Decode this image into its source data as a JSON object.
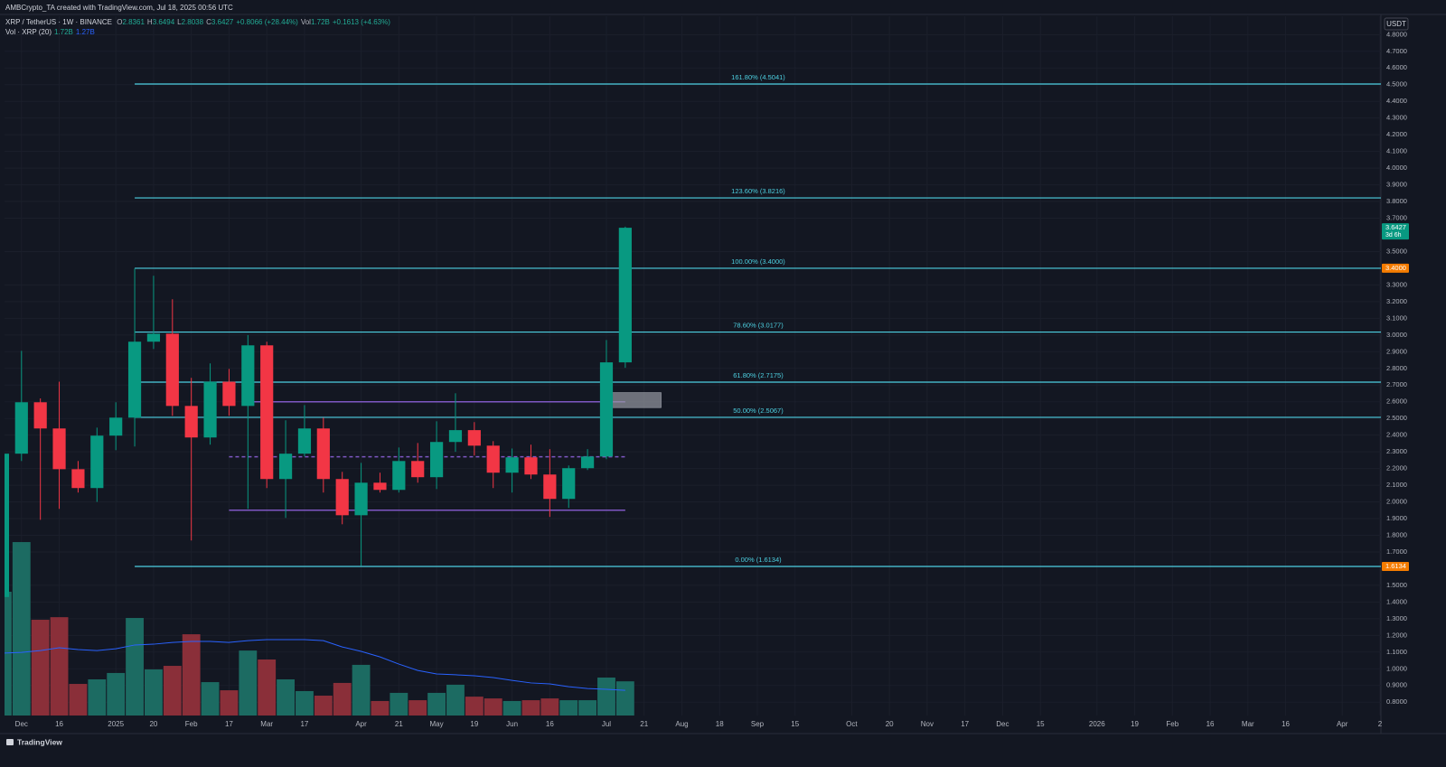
{
  "chart_data": {
    "type": "candlestick",
    "credit": "AMBCrypto_TA created with TradingView.com, Jul 18, 2025 00:56 UTC",
    "legend": {
      "symbol": "XRP / TetherUS · 1W · BINANCE",
      "ohlc": [
        {
          "key": "O",
          "value": "2.8361"
        },
        {
          "key": "H",
          "value": "3.6494"
        },
        {
          "key": "L",
          "value": "2.8038"
        },
        {
          "key": "C",
          "value": "3.6427"
        }
      ],
      "change": "+0.8066 (+28.44%)",
      "vol_key": "Vol",
      "vol_value": "1.72B",
      "vol_change": "+0.1613 (+4.63%)",
      "ma_name": "Vol · XRP (20)",
      "ma_vol": "1.72B",
      "ma_value": "1.27B"
    },
    "currency": "USDT",
    "brand": "TradingView",
    "up_color": "#089981",
    "down_color": "#f23645",
    "x": [
      -1,
      0,
      1,
      2,
      3,
      4,
      5,
      6,
      7,
      8,
      9,
      10,
      11,
      12,
      13,
      14,
      15,
      16,
      17,
      18,
      19,
      20,
      21,
      22,
      23,
      24,
      25,
      26,
      27,
      28,
      29,
      30,
      31,
      32
    ],
    "open": [
      1.43,
      2.289,
      2.597,
      2.44,
      2.196,
      2.083,
      2.397,
      2.505,
      2.96,
      3.008,
      2.575,
      2.386,
      2.72,
      2.575,
      2.938,
      2.137,
      2.289,
      2.44,
      2.137,
      1.92,
      2.115,
      2.072,
      2.245,
      2.148,
      2.359,
      2.43,
      2.337,
      2.175,
      2.267,
      2.164,
      2.018,
      2.202,
      2.272,
      2.8361
    ],
    "high": [
      2.35,
      2.905,
      2.62,
      2.72,
      2.245,
      2.445,
      2.597,
      3.398,
      3.355,
      3.214,
      2.743,
      2.83,
      2.797,
      3.0,
      2.96,
      2.489,
      2.58,
      2.505,
      2.18,
      2.234,
      2.175,
      2.326,
      2.353,
      2.483,
      2.651,
      2.478,
      2.364,
      2.32,
      2.343,
      2.316,
      2.218,
      2.316,
      2.97,
      3.6494
    ],
    "low": [
      1.4,
      2.245,
      1.893,
      1.958,
      2.056,
      2.0,
      2.31,
      2.332,
      2.916,
      2.516,
      1.769,
      2.343,
      2.516,
      1.958,
      2.083,
      1.904,
      2.272,
      2.056,
      1.866,
      1.617,
      2.056,
      2.056,
      2.115,
      2.077,
      2.3,
      2.278,
      2.083,
      2.056,
      2.137,
      1.91,
      1.964,
      2.191,
      2.256,
      2.8038
    ],
    "close": [
      2.289,
      2.597,
      2.44,
      2.196,
      2.083,
      2.397,
      2.505,
      2.96,
      3.008,
      2.575,
      2.386,
      2.72,
      2.575,
      2.938,
      2.137,
      2.289,
      2.44,
      2.137,
      1.92,
      2.115,
      2.072,
      2.245,
      2.148,
      2.359,
      2.43,
      2.337,
      2.175,
      2.267,
      2.164,
      2.018,
      2.202,
      2.272,
      2.8361,
      3.6427
    ],
    "volume": {
      "ylim": [
        0,
        35.2
      ],
      "up_color": "#1c6b62",
      "down_color": "#8a2f39",
      "values": [
        6.23,
        8.73,
        4.82,
        4.95,
        1.59,
        1.82,
        2.14,
        4.91,
        2.32,
        2.5,
        4.09,
        1.68,
        1.27,
        3.27,
        2.82,
        1.82,
        1.23,
        1.0,
        1.64,
        2.55,
        0.73,
        1.14,
        0.77,
        1.14,
        1.55,
        0.95,
        0.86,
        0.73,
        0.77,
        0.86,
        0.77,
        0.77,
        1.91,
        1.72
      ],
      "ma": {
        "color": "#2962ff",
        "values": [
          3.14,
          3.18,
          3.27,
          3.41,
          3.32,
          3.27,
          3.36,
          3.55,
          3.59,
          3.68,
          3.73,
          3.73,
          3.68,
          3.77,
          3.82,
          3.82,
          3.82,
          3.77,
          3.45,
          3.23,
          2.95,
          2.59,
          2.27,
          2.09,
          2.05,
          2.0,
          1.91,
          1.77,
          1.64,
          1.59,
          1.45,
          1.36,
          1.32,
          1.27
        ]
      }
    },
    "fib": {
      "color": "#4dd0e1",
      "start": 6,
      "levels": [
        {
          "value": 4.5041,
          "label": "161.80% (4.5041)"
        },
        {
          "value": 3.8216,
          "label": "123.60% (3.8216)"
        },
        {
          "value": 3.4,
          "label": "100.00% (3.4000)"
        },
        {
          "value": 3.0177,
          "label": "78.60% (3.0177)"
        },
        {
          "value": 2.7175,
          "label": "61.80% (2.7175)"
        },
        {
          "value": 2.5067,
          "label": "50.00% (2.5067)"
        },
        {
          "value": 1.6134,
          "label": "0.00% (1.6134)"
        }
      ]
    },
    "hlines": [
      {
        "value": 2.6,
        "x0": 12,
        "x1": 32,
        "dashed": false,
        "color": "#7e57c2"
      },
      {
        "value": 2.27,
        "x0": 11,
        "x1": 32,
        "dashed": true,
        "color": "#7e57c2"
      },
      {
        "value": 1.95,
        "x0": 11,
        "x1": 32,
        "dashed": false,
        "color": "#7e57c2"
      }
    ],
    "zone": {
      "top": 2.655,
      "bottom": 2.565,
      "x0": 31.3,
      "x1": 33.9,
      "color": "#9598a1"
    },
    "price_labels": [
      {
        "value": 3.6427,
        "label": "3.6427",
        "sublabel": "3d 6h",
        "color": "#089981"
      },
      {
        "value": 3.4,
        "label": "3.4000",
        "color": "#f57c00"
      },
      {
        "value": 1.6134,
        "label": "1.6134",
        "color": "#f57c00"
      }
    ],
    "xlim": [
      -0.9,
      72.05
    ],
    "xticks": [
      {
        "value": 0,
        "label": "Dec"
      },
      {
        "value": 2,
        "label": "16"
      },
      {
        "value": 5,
        "label": "2025"
      },
      {
        "value": 7,
        "label": "20"
      },
      {
        "value": 9,
        "label": "Feb"
      },
      {
        "value": 11,
        "label": "17"
      },
      {
        "value": 13,
        "label": "Mar"
      },
      {
        "value": 15,
        "label": "17"
      },
      {
        "value": 18,
        "label": "Apr"
      },
      {
        "value": 20,
        "label": "21"
      },
      {
        "value": 22,
        "label": "May"
      },
      {
        "value": 24,
        "label": "19"
      },
      {
        "value": 26,
        "label": "Jun"
      },
      {
        "value": 28,
        "label": "16"
      },
      {
        "value": 31,
        "label": "Jul"
      },
      {
        "value": 33,
        "label": "21"
      },
      {
        "value": 35,
        "label": "Aug"
      },
      {
        "value": 37,
        "label": "18"
      },
      {
        "value": 39,
        "label": "Sep"
      },
      {
        "value": 41,
        "label": "15"
      },
      {
        "value": 44,
        "label": "Oct"
      },
      {
        "value": 46,
        "label": "20"
      },
      {
        "value": 48,
        "label": "Nov"
      },
      {
        "value": 50,
        "label": "17"
      },
      {
        "value": 52,
        "label": "Dec"
      },
      {
        "value": 54,
        "label": "15"
      },
      {
        "value": 57,
        "label": "2026"
      },
      {
        "value": 59,
        "label": "19"
      },
      {
        "value": 61,
        "label": "Feb"
      },
      {
        "value": 63,
        "label": "16"
      },
      {
        "value": 65,
        "label": "Mar"
      },
      {
        "value": 67,
        "label": "16"
      },
      {
        "value": 70,
        "label": "Apr"
      },
      {
        "value": 72,
        "label": "2"
      }
    ],
    "ylim": [
      0.72,
      4.91
    ],
    "yticks": [
      {
        "value": 0.8,
        "label": "0.8000"
      },
      {
        "value": 0.9,
        "label": "0.9000"
      },
      {
        "value": 1.0,
        "label": "1.0000"
      },
      {
        "value": 1.1,
        "label": "1.1000"
      },
      {
        "value": 1.2,
        "label": "1.2000"
      },
      {
        "value": 1.3,
        "label": "1.3000"
      },
      {
        "value": 1.4,
        "label": "1.4000"
      },
      {
        "value": 1.5,
        "label": "1.5000"
      },
      {
        "value": 1.7,
        "label": "1.7000"
      },
      {
        "value": 1.8,
        "label": "1.8000"
      },
      {
        "value": 1.9,
        "label": "1.9000"
      },
      {
        "value": 2.0,
        "label": "2.0000"
      },
      {
        "value": 2.1,
        "label": "2.1000"
      },
      {
        "value": 2.2,
        "label": "2.2000"
      },
      {
        "value": 2.3,
        "label": "2.3000"
      },
      {
        "value": 2.4,
        "label": "2.4000"
      },
      {
        "value": 2.5,
        "label": "2.5000"
      },
      {
        "value": 2.6,
        "label": "2.6000"
      },
      {
        "value": 2.7,
        "label": "2.7000"
      },
      {
        "value": 2.8,
        "label": "2.8000"
      },
      {
        "value": 2.9,
        "label": "2.9000"
      },
      {
        "value": 3.0,
        "label": "3.0000"
      },
      {
        "value": 3.1,
        "label": "3.1000"
      },
      {
        "value": 3.2,
        "label": "3.2000"
      },
      {
        "value": 3.3,
        "label": "3.3000"
      },
      {
        "value": 3.5,
        "label": "3.5000"
      },
      {
        "value": 3.7,
        "label": "3.7000"
      },
      {
        "value": 3.8,
        "label": "3.8000"
      },
      {
        "value": 3.9,
        "label": "3.9000"
      },
      {
        "value": 4.0,
        "label": "4.0000"
      },
      {
        "value": 4.1,
        "label": "4.1000"
      },
      {
        "value": 4.2,
        "label": "4.2000"
      },
      {
        "value": 4.3,
        "label": "4.3000"
      },
      {
        "value": 4.4,
        "label": "4.4000"
      },
      {
        "value": 4.5,
        "label": "4.5000"
      },
      {
        "value": 4.6,
        "label": "4.6000"
      },
      {
        "value": 4.7,
        "label": "4.7000"
      },
      {
        "value": 4.8,
        "label": "4.8000"
      }
    ],
    "grid": true
  }
}
